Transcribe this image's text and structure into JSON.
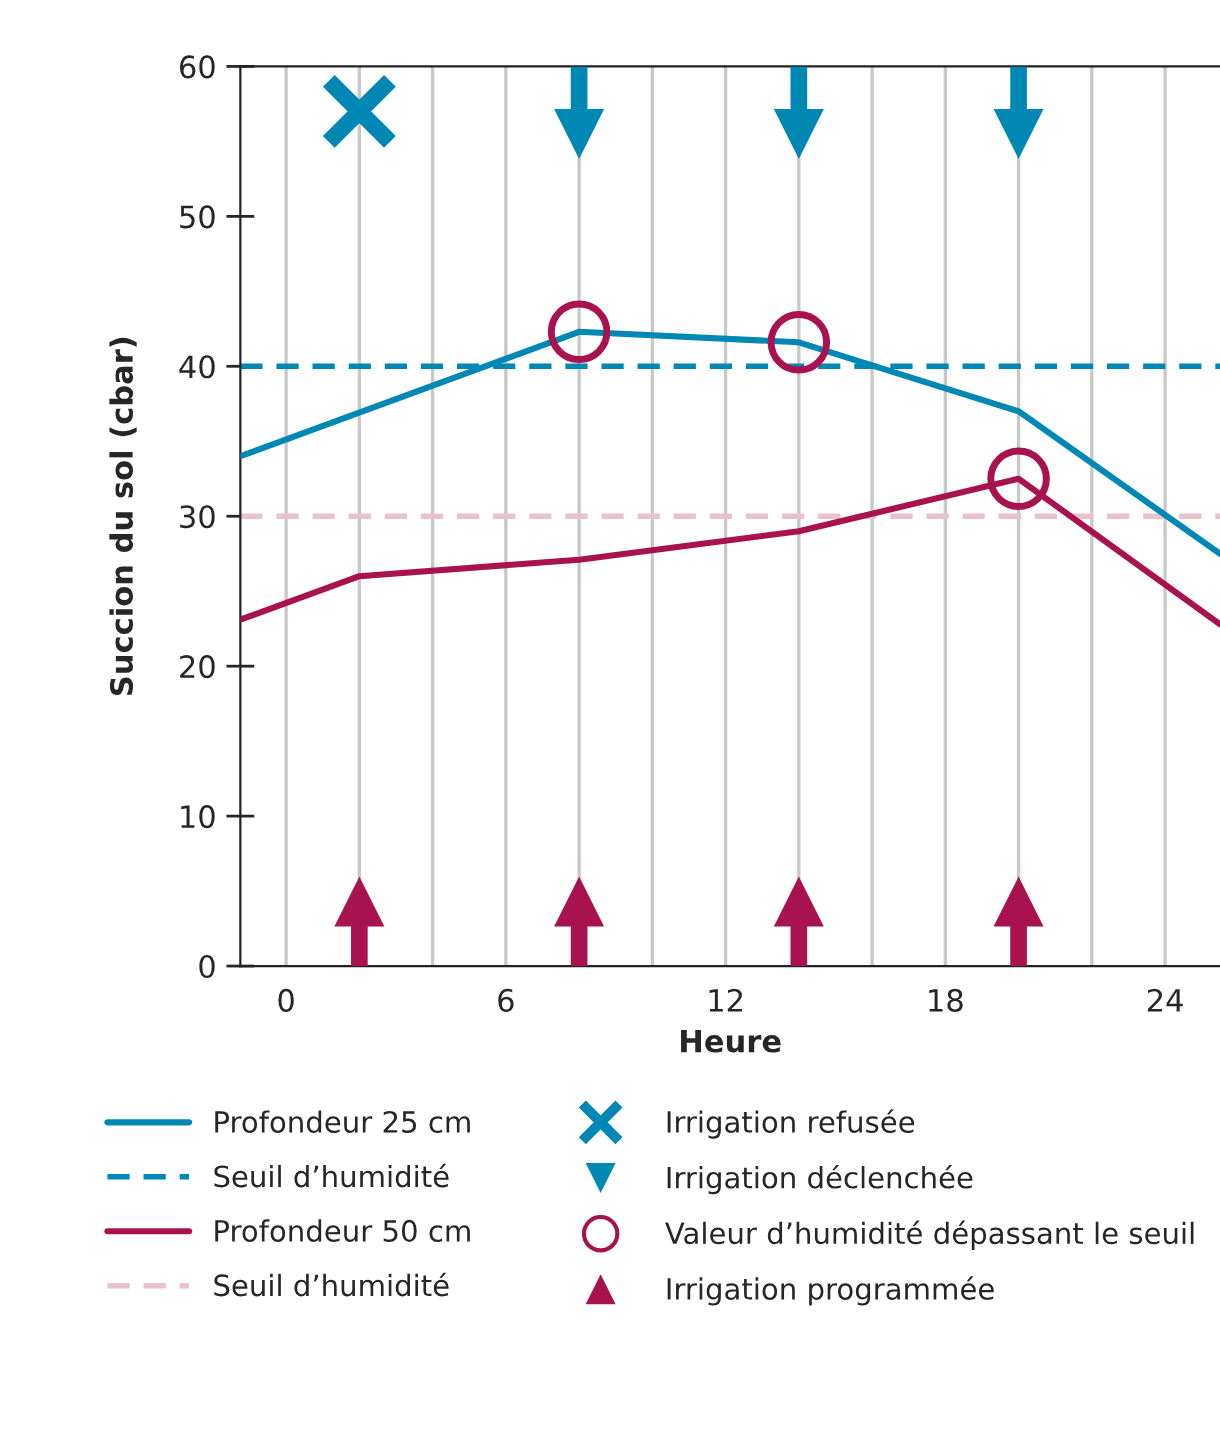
{
  "chart_data": {
    "type": "line",
    "xlabel": "Heure",
    "ylabel": "Succion du sol (cbar)",
    "xlim": [
      -1.25,
      25.5
    ],
    "ylim": [
      0,
      60
    ],
    "xticks": [
      0,
      {
        "value": 2,
        "label": null
      },
      {
        "value": 4,
        "label": null
      },
      6,
      {
        "value": 8,
        "label": null
      },
      {
        "value": 10,
        "label": null
      },
      12,
      {
        "value": 14,
        "label": null
      },
      {
        "value": 16,
        "label": null
      },
      18,
      {
        "value": 20,
        "label": null
      },
      {
        "value": 22,
        "label": null
      },
      24
    ],
    "yticks": [
      0,
      10,
      20,
      30,
      40,
      50,
      60
    ],
    "grid": "x",
    "legend": "bottom",
    "series": [
      {
        "name": "Profondeur 25 cm",
        "color": "#0088b5",
        "line_style": "solid",
        "marker": "none",
        "x": [
          -1.25,
          8,
          14,
          20,
          25.5
        ],
        "values": [
          34.0,
          42.3,
          41.6,
          37.0,
          27.5
        ]
      },
      {
        "name": "Profondeur 50 cm",
        "color": "#a8134f",
        "line_style": "solid",
        "marker": "none",
        "x": [
          -1.25,
          2,
          8,
          14,
          20,
          25.5
        ],
        "values": [
          23.1,
          26.0,
          27.1,
          29.0,
          32.5,
          22.8
        ]
      },
      {
        "name": "Irrigation refusée",
        "type": "scatter",
        "color": "#0088b5",
        "marker": "cross",
        "x": [
          2
        ],
        "values": [
          57
        ]
      },
      {
        "name": "Irrigation déclenchée",
        "type": "scatter",
        "color": "#0088b5",
        "marker": "triangle",
        "x": [
          8,
          14,
          20
        ],
        "values": [
          55.5,
          55.5,
          55.5
        ]
      },
      {
        "name": "Valeur d’humidité dépassant le seuil",
        "type": "scatter",
        "color": "#a8134f",
        "marker": "circle",
        "x": [
          8,
          14,
          20
        ],
        "values": [
          42.3,
          41.6,
          32.5
        ]
      },
      {
        "name": "Irrigation programmée",
        "type": "scatter",
        "color": "#a8134f",
        "marker": "triangle",
        "x": [
          2,
          8,
          14,
          20
        ],
        "values": [
          4.3,
          4.3,
          4.3,
          4.3
        ]
      }
    ],
    "ref_lines": [
      {
        "axis": "y",
        "value": 40,
        "label": "Seuil d’humidité",
        "color": "#0088b5",
        "line_style": "dashed"
      },
      {
        "axis": "y",
        "value": 30,
        "label": "Seuil d’humidité",
        "color": "#e8c3cc",
        "line_style": "dashed"
      }
    ]
  }
}
